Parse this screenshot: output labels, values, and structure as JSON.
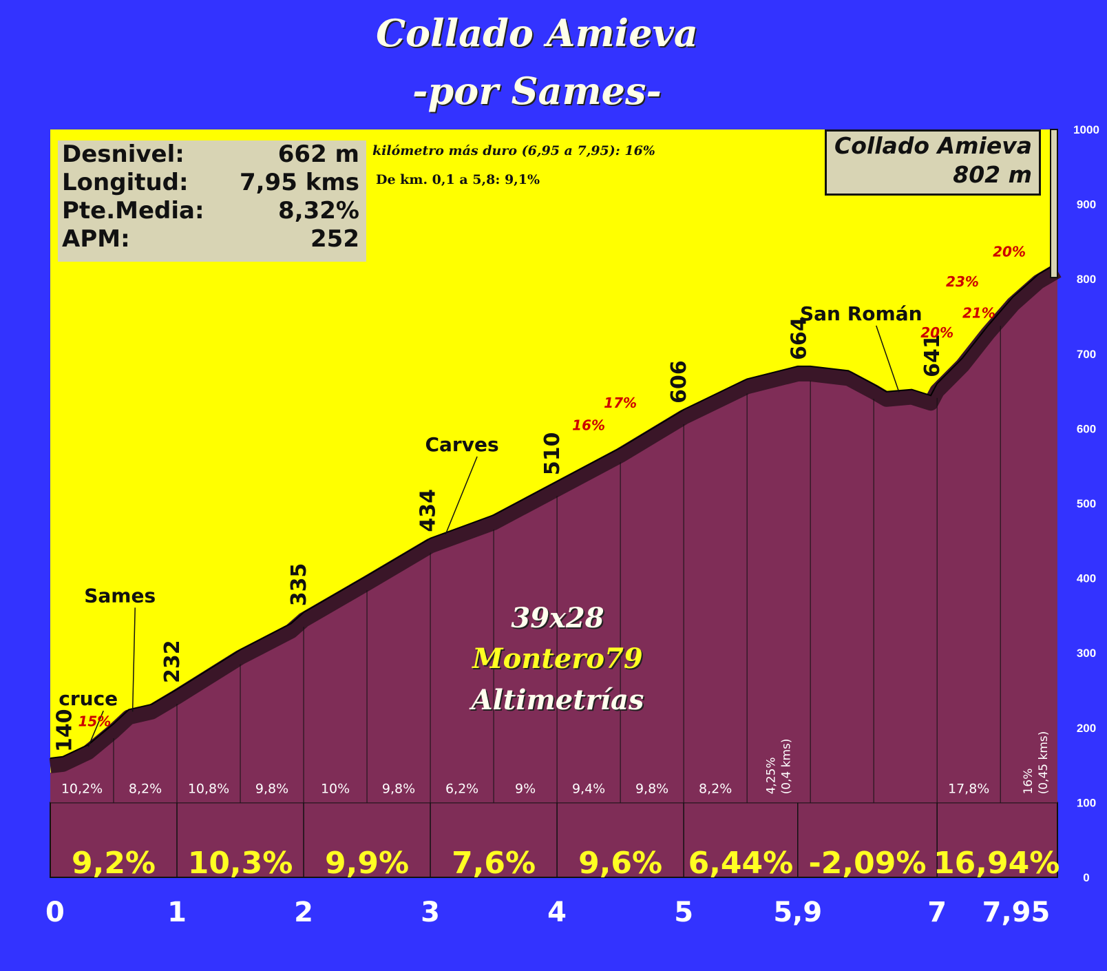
{
  "title": "Collado Amieva",
  "subtitle": "-por Sames-",
  "stats": [
    {
      "label": "Desnivel:",
      "value": "662 m"
    },
    {
      "label": "Longitud:",
      "value": "7,95 kms"
    },
    {
      "label": "Pte.Media:",
      "value": "8,32%"
    },
    {
      "label": "APM:",
      "value": "252"
    }
  ],
  "notes": {
    "hardest_km": "kilómetro más duro (6,95 a 7,95): 16%",
    "segment": "De km. 0,1 a 5,8:  9,1%"
  },
  "summit": {
    "name": "Collado Amieva",
    "altitude": "802 m"
  },
  "brand": {
    "gears": "39x28",
    "author": "Montero79",
    "site": "Altimetrías"
  },
  "colors": {
    "background": "#3333ff",
    "sky": "#ffff00",
    "profile": "#7f2d57",
    "profile_edge": "#3a1628",
    "yellow_text": "#ffff22",
    "ramp_red": "#cc0000"
  },
  "chart_data": {
    "type": "area",
    "xlabel": "",
    "ylabel": "",
    "ylim": [
      0,
      1000
    ],
    "xlim": [
      0,
      7.95
    ],
    "y_ticks": [
      "0",
      "100",
      "200",
      "300",
      "400",
      "500",
      "600",
      "700",
      "800",
      "900",
      "1000"
    ],
    "x_ticks": [
      {
        "x": 0,
        "label": "0"
      },
      {
        "x": 1,
        "label": "1"
      },
      {
        "x": 2,
        "label": "2"
      },
      {
        "x": 3,
        "label": "3"
      },
      {
        "x": 4,
        "label": "4"
      },
      {
        "x": 5,
        "label": "5"
      },
      {
        "x": 5.9,
        "label": "5,9"
      },
      {
        "x": 7,
        "label": "7"
      },
      {
        "x": 7.95,
        "label": "7,95"
      }
    ],
    "profile": [
      {
        "x": 0,
        "y": 140
      },
      {
        "x": 0.1,
        "y": 142
      },
      {
        "x": 0.3,
        "y": 158
      },
      {
        "x": 0.5,
        "y": 186
      },
      {
        "x": 0.62,
        "y": 205
      },
      {
        "x": 0.8,
        "y": 212
      },
      {
        "x": 1.0,
        "y": 232
      },
      {
        "x": 1.5,
        "y": 285
      },
      {
        "x": 1.9,
        "y": 320
      },
      {
        "x": 2.0,
        "y": 335
      },
      {
        "x": 2.5,
        "y": 384
      },
      {
        "x": 3.0,
        "y": 434
      },
      {
        "x": 3.5,
        "y": 465
      },
      {
        "x": 4.0,
        "y": 510
      },
      {
        "x": 4.5,
        "y": 555
      },
      {
        "x": 5.0,
        "y": 606
      },
      {
        "x": 5.5,
        "y": 647
      },
      {
        "x": 5.9,
        "y": 664
      },
      {
        "x": 6.0,
        "y": 664
      },
      {
        "x": 6.3,
        "y": 658
      },
      {
        "x": 6.5,
        "y": 640
      },
      {
        "x": 6.6,
        "y": 630
      },
      {
        "x": 6.8,
        "y": 633
      },
      {
        "x": 6.95,
        "y": 625
      },
      {
        "x": 7.0,
        "y": 641
      },
      {
        "x": 7.2,
        "y": 675
      },
      {
        "x": 7.4,
        "y": 718
      },
      {
        "x": 7.6,
        "y": 757
      },
      {
        "x": 7.8,
        "y": 787
      },
      {
        "x": 7.95,
        "y": 802
      }
    ],
    "half_km_gradients": [
      {
        "x": 0.25,
        "label": "10,2%"
      },
      {
        "x": 0.75,
        "label": "8,2%"
      },
      {
        "x": 1.25,
        "label": "10,8%"
      },
      {
        "x": 1.75,
        "label": "9,8%"
      },
      {
        "x": 2.25,
        "label": "10%"
      },
      {
        "x": 2.75,
        "label": "9,8%"
      },
      {
        "x": 3.25,
        "label": "6,2%"
      },
      {
        "x": 3.75,
        "label": "9%"
      },
      {
        "x": 4.25,
        "label": "9,4%"
      },
      {
        "x": 4.75,
        "label": "9,8%"
      },
      {
        "x": 5.25,
        "label": "8,2%"
      },
      {
        "x": 7.25,
        "label": "17,8%"
      }
    ],
    "vertical_gradients": [
      {
        "x": 5.72,
        "label": "4,25%",
        "sub": "(0,4 kms)"
      },
      {
        "x": 7.75,
        "label": "16%",
        "sub": "(0,45 kms)"
      }
    ],
    "km_gradients": [
      {
        "x": 0.5,
        "label": "9,2%"
      },
      {
        "x": 1.5,
        "label": "10,3%"
      },
      {
        "x": 2.5,
        "label": "9,9%"
      },
      {
        "x": 3.5,
        "label": "7,6%"
      },
      {
        "x": 4.5,
        "label": "9,6%"
      },
      {
        "x": 5.45,
        "label": "6,44%"
      },
      {
        "x": 6.45,
        "label": "-2,09%"
      },
      {
        "x": 7.47,
        "label": "16,94%"
      }
    ],
    "altitude_labels": [
      {
        "x": 0.1,
        "y": 140,
        "label": "140"
      },
      {
        "x": 0.95,
        "y": 232,
        "label": "232"
      },
      {
        "x": 1.95,
        "y": 335,
        "label": "335"
      },
      {
        "x": 2.97,
        "y": 434,
        "label": "434"
      },
      {
        "x": 3.95,
        "y": 510,
        "label": "510"
      },
      {
        "x": 4.95,
        "y": 606,
        "label": "606"
      },
      {
        "x": 5.9,
        "y": 664,
        "label": "664"
      },
      {
        "x": 6.95,
        "y": 641,
        "label": "641"
      }
    ],
    "places": [
      {
        "name": "cruce",
        "x": 0.3,
        "y": 158,
        "lx": 0.3,
        "ly": 230
      },
      {
        "name": "Sames",
        "x": 0.65,
        "y": 205,
        "lx": 0.55,
        "ly": 368
      },
      {
        "name": "Carves",
        "x": 3.12,
        "y": 442,
        "lx": 3.25,
        "ly": 570
      },
      {
        "name": "San Román",
        "x": 6.7,
        "y": 632,
        "lx": 6.4,
        "ly": 745
      }
    ],
    "ramps": [
      {
        "label": "15%",
        "x": 0.35,
        "y": 202
      },
      {
        "label": "16%",
        "x": 4.25,
        "y": 598
      },
      {
        "label": "17%",
        "x": 4.5,
        "y": 628
      },
      {
        "label": "20%",
        "x": 7.0,
        "y": 722
      },
      {
        "label": "21%",
        "x": 7.33,
        "y": 748
      },
      {
        "label": "23%",
        "x": 7.2,
        "y": 790
      },
      {
        "label": "20%",
        "x": 7.57,
        "y": 830
      }
    ]
  }
}
